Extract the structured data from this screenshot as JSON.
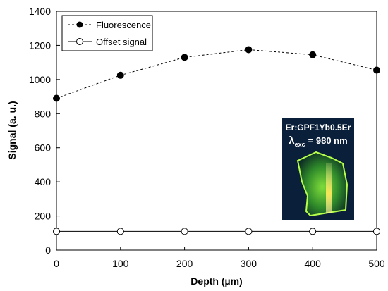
{
  "chart_data": {
    "type": "line",
    "xlabel": "Depth (µm)",
    "ylabel": "Signal (a. u.)",
    "xlim": [
      0,
      500
    ],
    "ylim": [
      0,
      1400
    ],
    "x_ticks": [
      0,
      100,
      200,
      300,
      400,
      500
    ],
    "y_ticks": [
      0,
      200,
      400,
      600,
      800,
      1000,
      1200,
      1400
    ],
    "grid": false,
    "legend_position": "top-left",
    "series": [
      {
        "name": "Fluorescence",
        "marker": "filled-circle",
        "line_style": "dashed",
        "color": "#000000",
        "x": [
          0,
          100,
          200,
          300,
          400,
          500
        ],
        "y": [
          890,
          1025,
          1130,
          1175,
          1145,
          1055
        ]
      },
      {
        "name": "Offset signal",
        "marker": "open-circle",
        "line_style": "solid",
        "color": "#000000",
        "x": [
          0,
          100,
          200,
          300,
          400,
          500
        ],
        "y": [
          110,
          110,
          110,
          110,
          110,
          110
        ]
      }
    ],
    "inset": {
      "sample": "Er:GPF1Yb0.5Er",
      "excitation_symbol": "λ",
      "excitation_subscript": "exc",
      "excitation_value": "= 980 nm"
    }
  }
}
